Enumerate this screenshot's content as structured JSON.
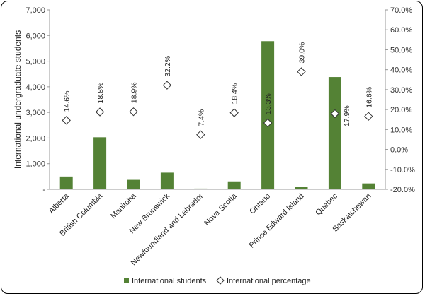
{
  "chart_data": {
    "type": "bar",
    "categories": [
      "Alberta",
      "British Columbia",
      "Manitoba",
      "New Brunswick",
      "Newfoundland and Labrador",
      "Nova Scotia",
      "Ontario",
      "Prince Edward Island",
      "Quebec",
      "Saskatchewan"
    ],
    "series": [
      {
        "name": "International students",
        "type": "bar",
        "axis": "left",
        "color": "#548235",
        "values": [
          500,
          2030,
          370,
          650,
          30,
          310,
          5780,
          90,
          4380,
          230
        ]
      },
      {
        "name": "International percentage",
        "type": "scatter",
        "axis": "right",
        "marker": "diamond",
        "values": [
          14.6,
          18.8,
          18.9,
          32.2,
          7.4,
          18.4,
          13.3,
          39.0,
          17.9,
          16.6
        ],
        "labels": [
          "14.6%",
          "18.8%",
          "18.9%",
          "32.2%",
          "7.4%",
          "18.4%",
          "13.3%",
          "39.0%",
          "17.9%",
          "16.6%"
        ]
      }
    ],
    "ylabel": "International undergraduate students",
    "ylim": [
      0,
      7000
    ],
    "y_ticks": [
      "-",
      "1,000",
      "2,000",
      "3,000",
      "4,000",
      "5,000",
      "6,000",
      "7,000"
    ],
    "y2lim": [
      -20,
      70
    ],
    "y2_ticks": [
      "-20.0%",
      "-10.0%",
      "0.0%",
      "10.0%",
      "20.0%",
      "30.0%",
      "40.0%",
      "50.0%",
      "60.0%",
      "70.0%"
    ],
    "legend_position": "bottom",
    "grid": false
  }
}
